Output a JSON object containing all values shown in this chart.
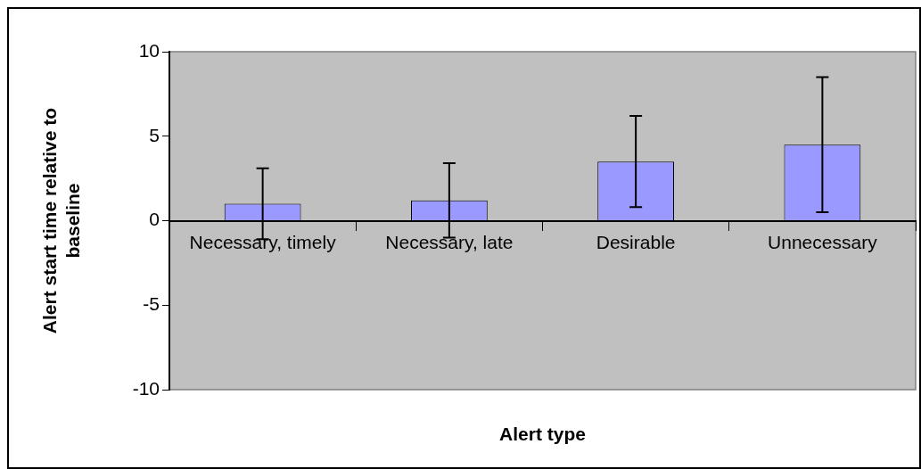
{
  "chart_data": {
    "type": "bar",
    "xlabel": "Alert type",
    "ylabel": "Alert start time relative to baseline",
    "categories": [
      "Necessary, timely",
      "Necessary, late",
      "Desirable",
      "Unnecessary"
    ],
    "values": [
      1.0,
      1.2,
      3.5,
      4.5
    ],
    "errors": [
      2.1,
      2.2,
      2.7,
      4.0
    ],
    "color": "#9999ff",
    "ylim": [
      -10,
      10
    ],
    "yticks": [
      -10,
      -5,
      0,
      5,
      10
    ],
    "grid": false,
    "legend": false
  }
}
